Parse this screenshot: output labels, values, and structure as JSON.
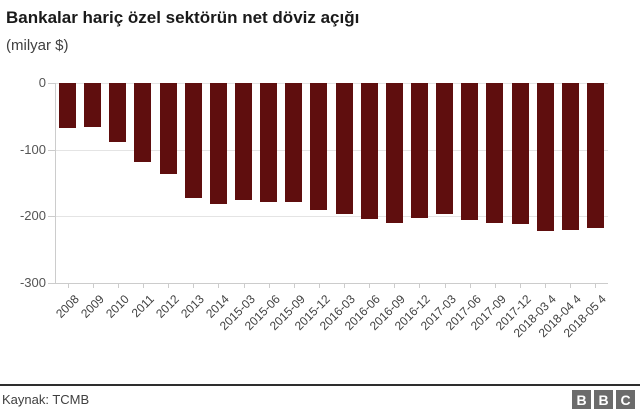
{
  "header": {
    "title": "Bankalar hariç özel sektörün net döviz açığı",
    "subtitle": "(milyar $)"
  },
  "chart_data": {
    "type": "bar",
    "title": "Bankalar hariç özel sektörün net döviz açığı",
    "subtitle": "(milyar $)",
    "categories": [
      "2008",
      "2009",
      "2010",
      "2011",
      "2012",
      "2013",
      "2014",
      "2015-03",
      "2015-06",
      "2015-09",
      "2015-12",
      "2016-03",
      "2016-06",
      "2016-09",
      "2016-12",
      "2017-03",
      "2017-06",
      "2017-09",
      "2017-12",
      "2018-03 4",
      "2018-04 4",
      "2018-05 4"
    ],
    "values": [
      -68,
      -66,
      -88,
      -118,
      -136,
      -172,
      -182,
      -176,
      -179,
      -179,
      -191,
      -196,
      -204,
      -210,
      -202,
      -196,
      -205,
      -210,
      -212,
      -222,
      -220,
      -217
    ],
    "xlabel": "",
    "ylabel": "",
    "ylim": [
      -300,
      0
    ],
    "yticks": [
      0,
      -100,
      -200,
      -300
    ],
    "ytick_labels": [
      "0",
      "-100",
      "-200",
      "-300"
    ],
    "bar_color": "#5f0e0e",
    "grid": true,
    "legend": false
  },
  "footer": {
    "source": "Kaynak: TCMB",
    "logo_letters": [
      "B",
      "B",
      "C"
    ]
  }
}
